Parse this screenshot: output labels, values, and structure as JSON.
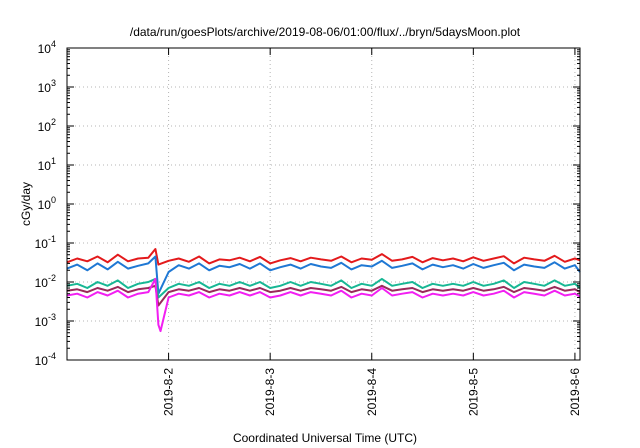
{
  "chart_data": {
    "type": "line",
    "title": "/data/run/goesPlots/archive/2019-08-06/01:00/flux/../bryn/5daysMoon.plot",
    "xlabel": "Coordinated Universal Time (UTC)",
    "ylabel": "cGy/day",
    "xlim": [
      1.0,
      6.05
    ],
    "ylim": [
      0.0001,
      10000
    ],
    "yscale": "log",
    "grid": true,
    "x_ticks": [
      {
        "x": 2,
        "label": "2019-8-2"
      },
      {
        "x": 3,
        "label": "2019-8-3"
      },
      {
        "x": 4,
        "label": "2019-8-4"
      },
      {
        "x": 5,
        "label": "2019-8-5"
      },
      {
        "x": 6,
        "label": "2019-8-6"
      }
    ],
    "y_ticks": [
      {
        "value": 0.0001,
        "base": "10",
        "exp": "-4"
      },
      {
        "value": 0.001,
        "base": "10",
        "exp": "-3"
      },
      {
        "value": 0.01,
        "base": "10",
        "exp": "-2"
      },
      {
        "value": 0.1,
        "base": "10",
        "exp": "-1"
      },
      {
        "value": 1,
        "base": "10",
        "exp": "0"
      },
      {
        "value": 10,
        "base": "10",
        "exp": "1"
      },
      {
        "value": 100,
        "base": "10",
        "exp": "2"
      },
      {
        "value": 1000,
        "base": "10",
        "exp": "3"
      },
      {
        "value": 10000,
        "base": "10",
        "exp": "4"
      }
    ],
    "series": [
      {
        "color": "#e31a1c",
        "x": [
          1.0,
          1.1,
          1.2,
          1.3,
          1.4,
          1.5,
          1.6,
          1.7,
          1.8,
          1.87,
          1.9,
          2.0,
          2.1,
          2.2,
          2.3,
          2.4,
          2.5,
          2.6,
          2.7,
          2.8,
          2.9,
          3.0,
          3.1,
          3.2,
          3.3,
          3.4,
          3.5,
          3.6,
          3.7,
          3.8,
          3.9,
          4.0,
          4.1,
          4.2,
          4.3,
          4.4,
          4.5,
          4.6,
          4.7,
          4.8,
          4.9,
          5.0,
          5.1,
          5.2,
          5.3,
          5.4,
          5.5,
          5.6,
          5.7,
          5.8,
          5.9,
          6.0,
          6.05
        ],
        "y": [
          0.032,
          0.04,
          0.034,
          0.045,
          0.032,
          0.05,
          0.034,
          0.04,
          0.042,
          0.07,
          0.028,
          0.035,
          0.04,
          0.033,
          0.045,
          0.03,
          0.038,
          0.036,
          0.042,
          0.034,
          0.044,
          0.03,
          0.036,
          0.041,
          0.034,
          0.042,
          0.038,
          0.035,
          0.045,
          0.032,
          0.04,
          0.037,
          0.052,
          0.035,
          0.038,
          0.044,
          0.032,
          0.041,
          0.036,
          0.04,
          0.034,
          0.043,
          0.035,
          0.04,
          0.046,
          0.03,
          0.042,
          0.038,
          0.035,
          0.047,
          0.033,
          0.04,
          0.036
        ]
      },
      {
        "color": "#1f78d4",
        "x": [
          1.0,
          1.1,
          1.2,
          1.3,
          1.4,
          1.5,
          1.6,
          1.7,
          1.8,
          1.87,
          1.9,
          2.0,
          2.1,
          2.2,
          2.3,
          2.4,
          2.5,
          2.6,
          2.7,
          2.8,
          2.9,
          3.0,
          3.1,
          3.2,
          3.3,
          3.4,
          3.5,
          3.6,
          3.7,
          3.8,
          3.9,
          4.0,
          4.1,
          4.2,
          4.3,
          4.4,
          4.5,
          4.6,
          4.7,
          4.8,
          4.9,
          5.0,
          5.1,
          5.2,
          5.3,
          5.4,
          5.5,
          5.6,
          5.7,
          5.8,
          5.9,
          6.0,
          6.05
        ],
        "y": [
          0.022,
          0.028,
          0.02,
          0.03,
          0.021,
          0.033,
          0.022,
          0.026,
          0.03,
          0.045,
          0.005,
          0.018,
          0.027,
          0.022,
          0.03,
          0.02,
          0.026,
          0.024,
          0.029,
          0.022,
          0.03,
          0.02,
          0.024,
          0.028,
          0.022,
          0.029,
          0.025,
          0.023,
          0.031,
          0.021,
          0.027,
          0.025,
          0.035,
          0.023,
          0.026,
          0.03,
          0.021,
          0.028,
          0.024,
          0.027,
          0.022,
          0.029,
          0.023,
          0.027,
          0.031,
          0.02,
          0.028,
          0.025,
          0.023,
          0.032,
          0.022,
          0.027,
          0.018
        ]
      },
      {
        "color": "#17b794",
        "x": [
          1.0,
          1.1,
          1.2,
          1.3,
          1.4,
          1.5,
          1.6,
          1.7,
          1.8,
          1.87,
          1.9,
          2.0,
          2.1,
          2.2,
          2.3,
          2.4,
          2.5,
          2.6,
          2.7,
          2.8,
          2.9,
          3.0,
          3.1,
          3.2,
          3.3,
          3.4,
          3.5,
          3.6,
          3.7,
          3.8,
          3.9,
          4.0,
          4.1,
          4.2,
          4.3,
          4.4,
          4.5,
          4.6,
          4.7,
          4.8,
          4.9,
          5.0,
          5.1,
          5.2,
          5.3,
          5.4,
          5.5,
          5.6,
          5.7,
          5.8,
          5.9,
          6.0,
          6.05
        ],
        "y": [
          0.008,
          0.009,
          0.007,
          0.01,
          0.008,
          0.011,
          0.007,
          0.009,
          0.01,
          0.012,
          0.004,
          0.007,
          0.009,
          0.008,
          0.01,
          0.007,
          0.009,
          0.008,
          0.01,
          0.008,
          0.01,
          0.007,
          0.008,
          0.01,
          0.008,
          0.01,
          0.009,
          0.008,
          0.011,
          0.007,
          0.009,
          0.008,
          0.012,
          0.008,
          0.009,
          0.01,
          0.007,
          0.009,
          0.008,
          0.009,
          0.008,
          0.01,
          0.008,
          0.009,
          0.011,
          0.007,
          0.01,
          0.009,
          0.008,
          0.011,
          0.008,
          0.009,
          0.007
        ]
      },
      {
        "color": "#9a2a5a",
        "x": [
          1.0,
          1.1,
          1.2,
          1.3,
          1.4,
          1.5,
          1.6,
          1.7,
          1.8,
          1.87,
          1.9,
          2.0,
          2.1,
          2.2,
          2.3,
          2.4,
          2.5,
          2.6,
          2.7,
          2.8,
          2.9,
          3.0,
          3.1,
          3.2,
          3.3,
          3.4,
          3.5,
          3.6,
          3.7,
          3.8,
          3.9,
          4.0,
          4.1,
          4.2,
          4.3,
          4.4,
          4.5,
          4.6,
          4.7,
          4.8,
          4.9,
          5.0,
          5.1,
          5.2,
          5.3,
          5.4,
          5.5,
          5.6,
          5.7,
          5.8,
          5.9,
          6.0,
          6.05
        ],
        "y": [
          0.006,
          0.0065,
          0.0055,
          0.007,
          0.006,
          0.0075,
          0.0055,
          0.0065,
          0.007,
          0.008,
          0.0025,
          0.0055,
          0.0065,
          0.006,
          0.007,
          0.0055,
          0.0065,
          0.006,
          0.007,
          0.006,
          0.007,
          0.0055,
          0.006,
          0.007,
          0.006,
          0.007,
          0.0065,
          0.006,
          0.0075,
          0.0055,
          0.0065,
          0.006,
          0.008,
          0.006,
          0.0065,
          0.007,
          0.0055,
          0.0065,
          0.006,
          0.0065,
          0.006,
          0.007,
          0.006,
          0.0065,
          0.0075,
          0.0055,
          0.007,
          0.0065,
          0.006,
          0.0075,
          0.006,
          0.0065,
          0.0055
        ]
      },
      {
        "color": "#f21ff2",
        "x": [
          1.0,
          1.1,
          1.2,
          1.3,
          1.4,
          1.5,
          1.6,
          1.7,
          1.8,
          1.87,
          1.9,
          1.92,
          2.0,
          2.1,
          2.2,
          2.3,
          2.4,
          2.5,
          2.6,
          2.7,
          2.8,
          2.9,
          3.0,
          3.1,
          3.2,
          3.3,
          3.4,
          3.5,
          3.6,
          3.7,
          3.8,
          3.9,
          4.0,
          4.1,
          4.2,
          4.3,
          4.4,
          4.5,
          4.6,
          4.7,
          4.8,
          4.9,
          5.0,
          5.1,
          5.2,
          5.3,
          5.4,
          5.5,
          5.6,
          5.7,
          5.8,
          5.9,
          6.0,
          6.05
        ],
        "y": [
          0.0045,
          0.005,
          0.004,
          0.0055,
          0.0045,
          0.006,
          0.004,
          0.005,
          0.0055,
          0.012,
          0.0008,
          0.00055,
          0.004,
          0.005,
          0.0045,
          0.0055,
          0.004,
          0.005,
          0.0045,
          0.0055,
          0.0045,
          0.0055,
          0.004,
          0.0045,
          0.0055,
          0.0045,
          0.0055,
          0.005,
          0.0045,
          0.006,
          0.004,
          0.005,
          0.0045,
          0.007,
          0.0045,
          0.005,
          0.0055,
          0.004,
          0.005,
          0.0045,
          0.005,
          0.0045,
          0.0055,
          0.0045,
          0.005,
          0.006,
          0.004,
          0.0055,
          0.005,
          0.0045,
          0.006,
          0.0045,
          0.005,
          0.0042
        ]
      }
    ]
  }
}
